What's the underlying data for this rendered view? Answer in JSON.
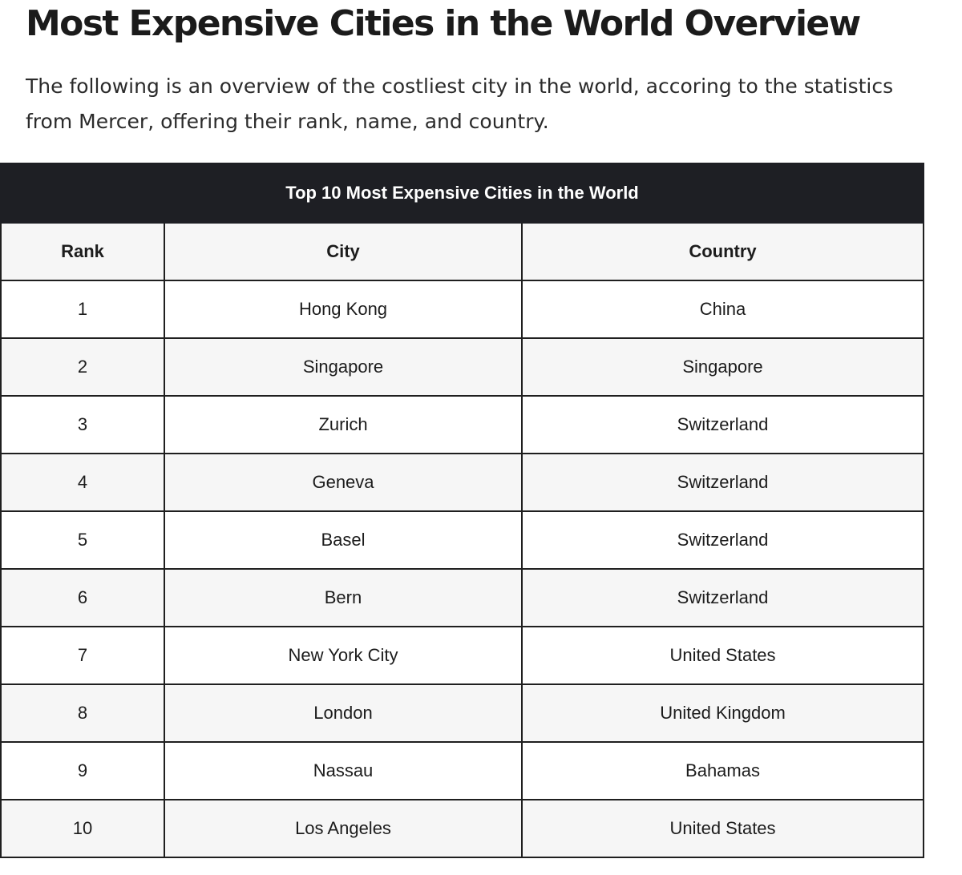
{
  "header": {
    "title": "Most Expensive Cities in the World Overview",
    "intro": "The following is an overview of the costliest city in the world, accoring to the statistics from Mercer, offering their rank, name, and country."
  },
  "table": {
    "caption": "Top 10 Most Expensive Cities in the World",
    "columns": [
      "Rank",
      "City",
      "Country"
    ],
    "rows": [
      {
        "rank": "1",
        "city": "Hong Kong",
        "country": "China"
      },
      {
        "rank": "2",
        "city": "Singapore",
        "country": "Singapore"
      },
      {
        "rank": "3",
        "city": "Zurich",
        "country": "Switzerland"
      },
      {
        "rank": "4",
        "city": "Geneva",
        "country": "Switzerland"
      },
      {
        "rank": "5",
        "city": "Basel",
        "country": "Switzerland"
      },
      {
        "rank": "6",
        "city": "Bern",
        "country": "Switzerland"
      },
      {
        "rank": "7",
        "city": "New York City",
        "country": "United States"
      },
      {
        "rank": "8",
        "city": "London",
        "country": "United Kingdom"
      },
      {
        "rank": "9",
        "city": "Nassau",
        "country": "Bahamas"
      },
      {
        "rank": "10",
        "city": "Los Angeles",
        "country": "United States"
      }
    ]
  }
}
